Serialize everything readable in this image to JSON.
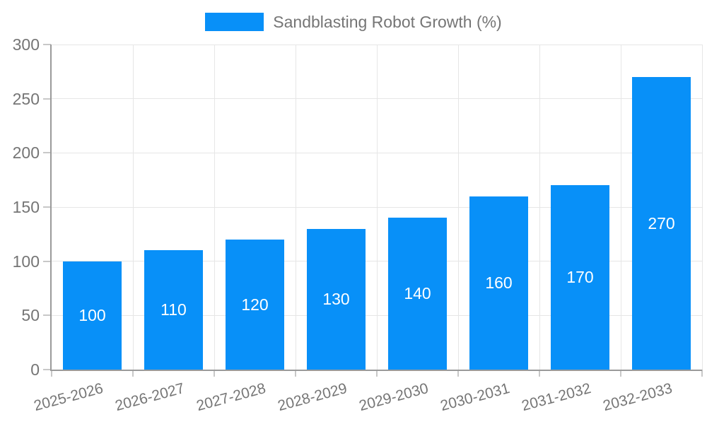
{
  "legend": {
    "label": "Sandblasting Robot Growth (%)"
  },
  "chart_data": {
    "type": "bar",
    "title": "Sandblasting Robot Growth (%)",
    "categories": [
      "2025-2026",
      "2026-2027",
      "2027-2028",
      "2028-2029",
      "2029-2030",
      "2030-2031",
      "2031-2032",
      "2032-2033"
    ],
    "values": [
      100,
      110,
      120,
      130,
      140,
      160,
      170,
      270
    ],
    "value_labels": [
      "100",
      "110",
      "120",
      "130",
      "140",
      "160",
      "170",
      "270"
    ],
    "xlabel": "",
    "ylabel": "",
    "ylim": [
      0,
      300
    ],
    "yticks": [
      0,
      50,
      100,
      150,
      200,
      250,
      300
    ],
    "grid": true,
    "legend_position": "top",
    "value_labels_shown": true,
    "colors": {
      "bar": "#0890F8",
      "bar_label_text": "#FFFFFF",
      "axis_line": "#9A9A9A",
      "tick_mark": "#C8C8C8",
      "grid_line": "#E6E6E6",
      "tick_label_text": "#757575",
      "background": "#FFFFFF"
    }
  }
}
